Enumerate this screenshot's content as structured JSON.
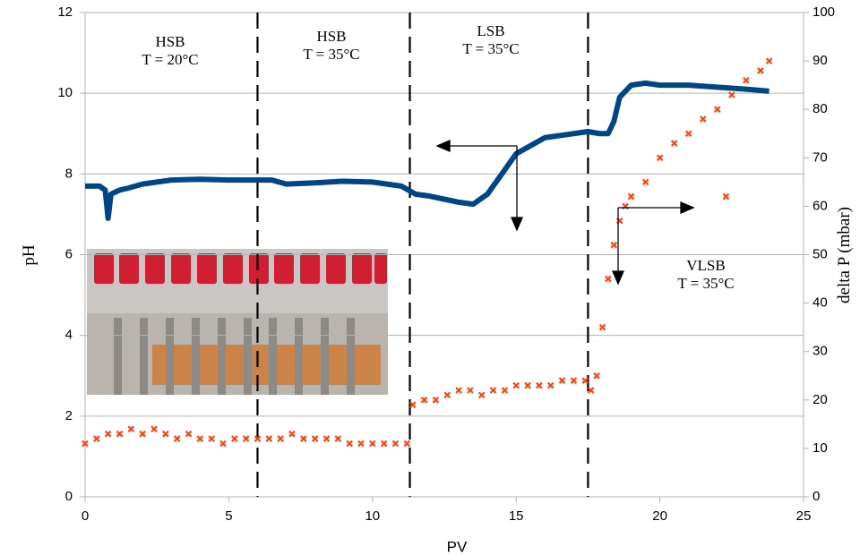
{
  "chart_data": {
    "type": "scatter",
    "xlabel": "PV",
    "ylabel": "pH",
    "y2label": "delta P (mbar)",
    "xlim": [
      0,
      25
    ],
    "xticks": [
      0,
      5,
      10,
      15,
      20,
      25
    ],
    "ylim": [
      0,
      12
    ],
    "yticks": [
      0,
      2,
      4,
      6,
      8,
      10,
      12
    ],
    "y2lim": [
      0,
      100
    ],
    "y2ticks": [
      0,
      10,
      20,
      30,
      40,
      50,
      60,
      70,
      80,
      90,
      100
    ],
    "grid": true,
    "vlines": [
      6,
      11.3,
      17.5
    ],
    "annotations": [
      {
        "lines": [
          "HSB",
          "T = 20°C"
        ]
      },
      {
        "lines": [
          "HSB",
          "T = 35°C"
        ]
      },
      {
        "lines": [
          "LSB",
          "T = 35°C"
        ]
      },
      {
        "lines": [
          "VLSB",
          "T = 35°C"
        ]
      }
    ],
    "series": [
      {
        "name": "pH",
        "kind": "line",
        "color": "#004586",
        "x": [
          0,
          0.5,
          0.7,
          0.8,
          0.9,
          1.2,
          1.5,
          2,
          2.5,
          3,
          4,
          5,
          6,
          6.5,
          7,
          8,
          9,
          10,
          11,
          11.5,
          12,
          13,
          13.5,
          14,
          14.5,
          15,
          16,
          17,
          17.5,
          17.9,
          18.2,
          18.4,
          18.6,
          19,
          19.5,
          20,
          21,
          22,
          23,
          23.8
        ],
        "values": [
          7.7,
          7.7,
          7.6,
          6.9,
          7.5,
          7.6,
          7.65,
          7.75,
          7.8,
          7.85,
          7.87,
          7.85,
          7.85,
          7.85,
          7.75,
          7.78,
          7.82,
          7.8,
          7.7,
          7.5,
          7.45,
          7.3,
          7.25,
          7.5,
          8.0,
          8.5,
          8.9,
          9.0,
          9.05,
          9.0,
          9.0,
          9.3,
          9.9,
          10.2,
          10.25,
          10.2,
          10.2,
          10.15,
          10.1,
          10.05
        ]
      },
      {
        "name": "delta P",
        "kind": "scatter",
        "axis": "y2",
        "color": "#ff420e",
        "x": [
          0,
          0.4,
          0.8,
          1.2,
          1.6,
          2,
          2.4,
          2.8,
          3.2,
          3.6,
          4,
          4.4,
          4.8,
          5.2,
          5.6,
          6,
          6.4,
          6.8,
          7.2,
          7.6,
          8,
          8.4,
          8.8,
          9.2,
          9.6,
          10,
          10.4,
          10.8,
          11.2,
          11.4,
          11.8,
          12.2,
          12.6,
          13,
          13.4,
          13.8,
          14.2,
          14.6,
          15,
          15.4,
          15.8,
          16.2,
          16.6,
          17,
          17.4,
          17.6,
          17.8,
          18,
          18.2,
          18.4,
          18.6,
          18.8,
          19,
          19.5,
          20,
          20.5,
          21,
          21.5,
          22,
          22.3,
          22.5,
          23,
          23.5,
          23.8
        ],
        "values": [
          11,
          12,
          13,
          13,
          14,
          13,
          14,
          13,
          12,
          13,
          12,
          12,
          11,
          12,
          12,
          12,
          12,
          12,
          13,
          12,
          12,
          12,
          12,
          11,
          11,
          11,
          11,
          11,
          11,
          19,
          20,
          20,
          21,
          22,
          22,
          21,
          22,
          22,
          23,
          23,
          23,
          23,
          24,
          24,
          24,
          22,
          25,
          35,
          45,
          52,
          57,
          60,
          62,
          65,
          70,
          73,
          75,
          78,
          80,
          62,
          83,
          86,
          88,
          90
        ]
      }
    ]
  }
}
